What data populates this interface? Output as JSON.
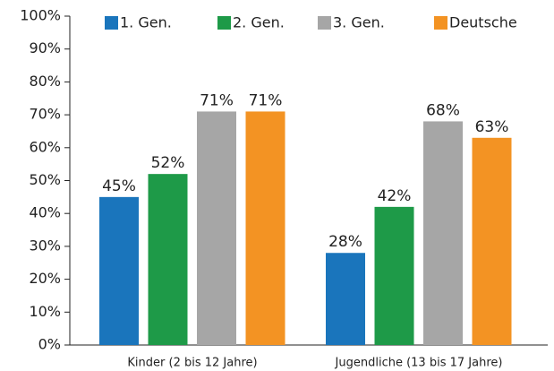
{
  "chart_data": {
    "type": "bar",
    "categories": [
      "Kinder (2 bis 12 Jahre)",
      "Jugendliche (13 bis 17 Jahre)"
    ],
    "series": [
      {
        "name": "1. Gen.",
        "color": "#1a75bc",
        "values": [
          45,
          28
        ],
        "value_labels": [
          "45%",
          "28%"
        ]
      },
      {
        "name": "2. Gen.",
        "color": "#1e9a48",
        "values": [
          52,
          42
        ],
        "value_labels": [
          "52%",
          "42%"
        ]
      },
      {
        "name": "3. Gen.",
        "color": "#a6a6a6",
        "values": [
          71,
          68
        ],
        "value_labels": [
          "71%",
          "68%"
        ]
      },
      {
        "name": "Deutsche",
        "color": "#f39323",
        "values": [
          71,
          63
        ],
        "value_labels": [
          "71%",
          "63%"
        ]
      }
    ],
    "ylim": [
      0,
      100
    ],
    "yticks": [
      {
        "value": 0,
        "label": "0%"
      },
      {
        "value": 10,
        "label": "10%"
      },
      {
        "value": 20,
        "label": "20%"
      },
      {
        "value": 30,
        "label": "30%"
      },
      {
        "value": 40,
        "label": "40%"
      },
      {
        "value": 50,
        "label": "50%"
      },
      {
        "value": 60,
        "label": "60%"
      },
      {
        "value": 70,
        "label": "70%"
      },
      {
        "value": 80,
        "label": "80%"
      },
      {
        "value": 90,
        "label": "90%"
      },
      {
        "value": 100,
        "label": "100%"
      }
    ],
    "grid": false,
    "legend": "top"
  }
}
